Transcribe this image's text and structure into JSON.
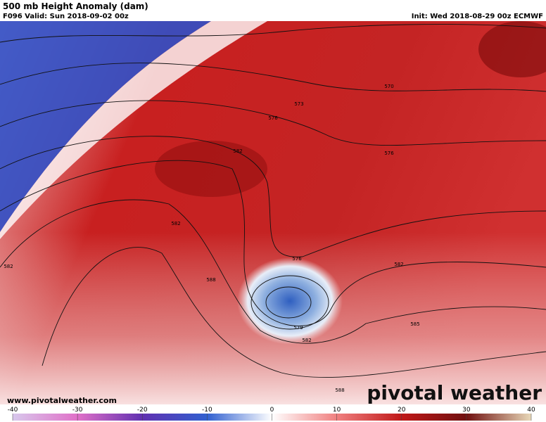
{
  "header": {
    "title": "500 mb Height Anomaly (dam)",
    "valid": "F096 Valid: Sun 2018-09-02 00z",
    "init": "Init: Wed 2018-08-29 00z ECMWF"
  },
  "contour_labels": [
    570,
    573,
    576,
    582,
    582,
    588,
    576,
    582,
    579,
    582,
    588,
    582,
    585,
    576
  ],
  "colorbar": {
    "lim": [
      -40,
      40
    ],
    "ticks": [
      -40,
      -30,
      -20,
      -10,
      0,
      10,
      20,
      30,
      40
    ]
  },
  "footer": {
    "url": "www.pivotalweather.com",
    "logo": "pivotal weather"
  }
}
